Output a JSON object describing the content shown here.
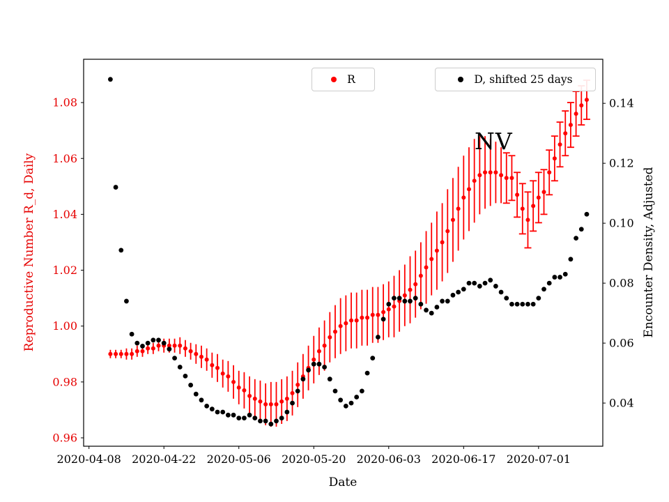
{
  "chart_data": {
    "type": "scatter",
    "annotation": "NV",
    "xlabel": "Date",
    "legend": [
      {
        "label": "R",
        "marker_color": "#ff0000"
      },
      {
        "label": "D, shifted 25 days",
        "marker_color": "#000000"
      }
    ],
    "axes": {
      "x": {
        "lim": [
          "2020-04-07",
          "2020-07-13"
        ],
        "ticks": [
          "2020-04-08",
          "2020-04-22",
          "2020-05-06",
          "2020-05-20",
          "2020-06-03",
          "2020-06-17",
          "2020-07-01"
        ]
      },
      "y_left": {
        "label": "Reproductive Number R_d, Daily",
        "color": "#e60000",
        "lim": [
          0.957,
          1.0955
        ],
        "ticks": [
          "0.96",
          "0.98",
          "1.00",
          "1.02",
          "1.04",
          "1.06",
          "1.08"
        ]
      },
      "y_right": {
        "label": "Encounter Density, Adjusted",
        "color": "#000000",
        "lim": [
          0.0256,
          0.1547
        ],
        "ticks": [
          "0.04",
          "0.06",
          "0.08",
          "0.10",
          "0.12",
          "0.14"
        ]
      }
    },
    "dates": [
      "2020-04-12",
      "2020-04-13",
      "2020-04-14",
      "2020-04-15",
      "2020-04-16",
      "2020-04-17",
      "2020-04-18",
      "2020-04-19",
      "2020-04-20",
      "2020-04-21",
      "2020-04-22",
      "2020-04-23",
      "2020-04-24",
      "2020-04-25",
      "2020-04-26",
      "2020-04-27",
      "2020-04-28",
      "2020-04-29",
      "2020-04-30",
      "2020-05-01",
      "2020-05-02",
      "2020-05-03",
      "2020-05-04",
      "2020-05-05",
      "2020-05-06",
      "2020-05-07",
      "2020-05-08",
      "2020-05-09",
      "2020-05-10",
      "2020-05-11",
      "2020-05-12",
      "2020-05-13",
      "2020-05-14",
      "2020-05-15",
      "2020-05-16",
      "2020-05-17",
      "2020-05-18",
      "2020-05-19",
      "2020-05-20",
      "2020-05-21",
      "2020-05-22",
      "2020-05-23",
      "2020-05-24",
      "2020-05-25",
      "2020-05-26",
      "2020-05-27",
      "2020-05-28",
      "2020-05-29",
      "2020-05-30",
      "2020-05-31",
      "2020-06-01",
      "2020-06-02",
      "2020-06-03",
      "2020-06-04",
      "2020-06-05",
      "2020-06-06",
      "2020-06-07",
      "2020-06-08",
      "2020-06-09",
      "2020-06-10",
      "2020-06-11",
      "2020-06-12",
      "2020-06-13",
      "2020-06-14",
      "2020-06-15",
      "2020-06-16",
      "2020-06-17",
      "2020-06-18",
      "2020-06-19",
      "2020-06-20",
      "2020-06-21",
      "2020-06-22",
      "2020-06-23",
      "2020-06-24",
      "2020-06-25",
      "2020-06-26",
      "2020-06-27",
      "2020-06-28",
      "2020-06-29",
      "2020-06-30",
      "2020-07-01",
      "2020-07-02",
      "2020-07-03",
      "2020-07-04",
      "2020-07-05",
      "2020-07-06",
      "2020-07-07",
      "2020-07-08",
      "2020-07-09",
      "2020-07-10"
    ],
    "series": [
      {
        "name": "R",
        "axis": "left",
        "color": "#ff0000",
        "marker": "circle",
        "caps_start_index": 74,
        "values": [
          0.99,
          0.99,
          0.99,
          0.99,
          0.99,
          0.991,
          0.991,
          0.992,
          0.992,
          0.993,
          0.993,
          0.993,
          0.993,
          0.993,
          0.992,
          0.991,
          0.99,
          0.989,
          0.988,
          0.986,
          0.985,
          0.983,
          0.982,
          0.98,
          0.978,
          0.977,
          0.975,
          0.974,
          0.973,
          0.972,
          0.972,
          0.972,
          0.973,
          0.974,
          0.976,
          0.979,
          0.982,
          0.985,
          0.988,
          0.991,
          0.993,
          0.996,
          0.998,
          1.0,
          1.001,
          1.002,
          1.002,
          1.003,
          1.003,
          1.004,
          1.004,
          1.005,
          1.006,
          1.007,
          1.009,
          1.011,
          1.013,
          1.015,
          1.018,
          1.021,
          1.024,
          1.027,
          1.03,
          1.034,
          1.038,
          1.042,
          1.046,
          1.049,
          1.052,
          1.054,
          1.055,
          1.055,
          1.055,
          1.054,
          1.053,
          1.053,
          1.047,
          1.042,
          1.038,
          1.043,
          1.046,
          1.048,
          1.055,
          1.06,
          1.065,
          1.069,
          1.072,
          1.076,
          1.079,
          1.081
        ],
        "errors": [
          0.0015,
          0.0015,
          0.0015,
          0.002,
          0.002,
          0.002,
          0.002,
          0.002,
          0.002,
          0.002,
          0.0025,
          0.0025,
          0.0025,
          0.003,
          0.003,
          0.003,
          0.0035,
          0.004,
          0.004,
          0.0045,
          0.005,
          0.005,
          0.0055,
          0.006,
          0.006,
          0.0065,
          0.007,
          0.007,
          0.0075,
          0.0075,
          0.008,
          0.008,
          0.008,
          0.008,
          0.008,
          0.008,
          0.008,
          0.008,
          0.0085,
          0.0085,
          0.009,
          0.009,
          0.0095,
          0.01,
          0.01,
          0.01,
          0.01,
          0.01,
          0.01,
          0.01,
          0.01,
          0.01,
          0.01,
          0.011,
          0.011,
          0.011,
          0.012,
          0.012,
          0.012,
          0.013,
          0.013,
          0.014,
          0.014,
          0.015,
          0.015,
          0.015,
          0.015,
          0.015,
          0.015,
          0.014,
          0.013,
          0.012,
          0.011,
          0.01,
          0.009,
          0.008,
          0.008,
          0.009,
          0.01,
          0.009,
          0.009,
          0.008,
          0.008,
          0.008,
          0.008,
          0.008,
          0.008,
          0.008,
          0.007,
          0.007
        ]
      },
      {
        "name": "D, shifted 25 days",
        "axis": "right",
        "color": "#000000",
        "marker": "circle",
        "values": [
          0.148,
          0.112,
          0.091,
          0.074,
          0.063,
          0.06,
          0.059,
          0.06,
          0.061,
          0.061,
          0.06,
          0.058,
          0.055,
          0.052,
          0.049,
          0.046,
          0.043,
          0.041,
          0.039,
          0.038,
          0.037,
          0.037,
          0.036,
          0.036,
          0.035,
          0.035,
          0.036,
          0.035,
          0.034,
          0.034,
          0.033,
          0.034,
          0.035,
          0.037,
          0.04,
          0.044,
          0.048,
          0.051,
          0.053,
          0.053,
          0.052,
          0.048,
          0.044,
          0.041,
          0.039,
          0.04,
          0.042,
          0.044,
          0.05,
          0.055,
          0.062,
          0.068,
          0.073,
          0.075,
          0.075,
          0.074,
          0.074,
          0.075,
          0.073,
          0.071,
          0.07,
          0.072,
          0.074,
          0.074,
          0.076,
          0.077,
          0.078,
          0.08,
          0.08,
          0.079,
          0.08,
          0.081,
          0.079,
          0.077,
          0.075,
          0.073,
          0.073,
          0.073,
          0.073,
          0.073,
          0.075,
          0.078,
          0.08,
          0.082,
          0.082,
          0.083,
          0.088,
          0.095,
          0.098,
          0.103
        ]
      }
    ]
  }
}
